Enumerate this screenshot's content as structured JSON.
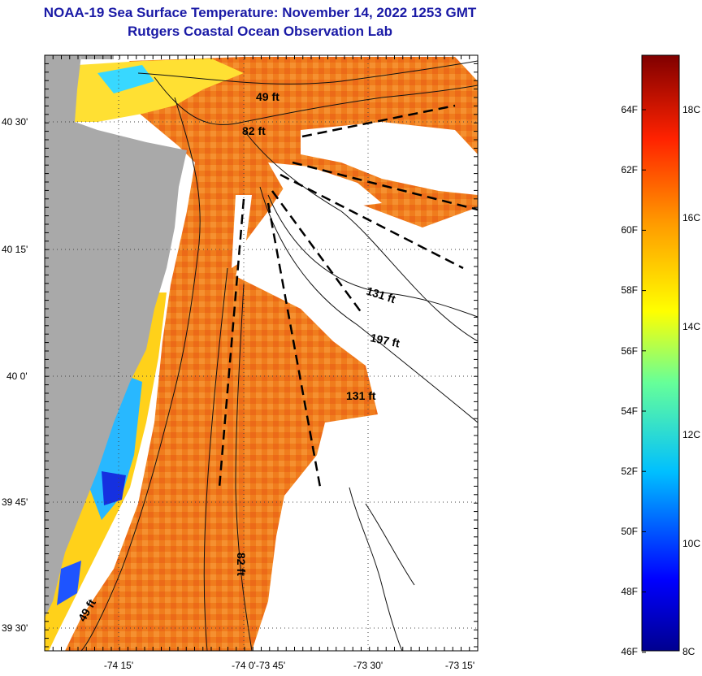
{
  "title": "NOAA-19 Sea Surface Temperature:  November 14, 2022 1253 GMT",
  "subtitle": "Rutgers Coastal Ocean Observation Lab",
  "map": {
    "lat_ticks": [
      "40 30'",
      "40 15'",
      "40 0'",
      "39 45'",
      "39 30'"
    ],
    "lon_ticks": [
      "-74 15'",
      "-74 0'",
      "-73 45'",
      "-73 30'",
      "-73 15'"
    ],
    "depth_labels": [
      "49 ft",
      "82 ft",
      "131 ft",
      "197 ft",
      "131 ft",
      "82 ft",
      "49 ft"
    ],
    "colors": {
      "land": "#a9a9a9",
      "warm": "#f07c1c",
      "cloud": "#ffffff"
    }
  },
  "colorbar": {
    "f_labels": [
      "64F",
      "62F",
      "60F",
      "58F",
      "56F",
      "54F",
      "52F",
      "50F",
      "48F",
      "46F"
    ],
    "c_labels": [
      "18C",
      "16C",
      "14C",
      "12C",
      "10C",
      "8C"
    ],
    "range_c": [
      8,
      19
    ]
  }
}
